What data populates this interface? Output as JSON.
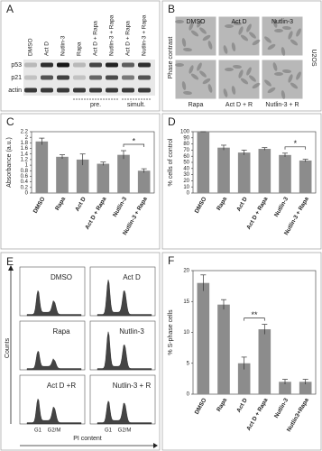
{
  "panel_a": {
    "panel": "A",
    "lanes": [
      "DMSO",
      "Act D",
      "Nutlin-3",
      "Rapa",
      "Act D + Rapa",
      "Nutlin-3 + Rapa",
      "Act D + Rapa",
      "Nutlin-3 + Rapa"
    ],
    "rows": [
      "p53",
      "p21",
      "actin"
    ],
    "groups": [
      "pre.",
      "simult."
    ]
  },
  "panel_b": {
    "panel": "B",
    "top": [
      "DMSO",
      "Act D",
      "Nutlin-3"
    ],
    "bottom": [
      "Rapa",
      "Act D + R",
      "Nutlin-3 + R"
    ],
    "side_label": "Phase contrast",
    "cell_line": "U2OS"
  },
  "panel_e": {
    "panel": "E",
    "plots": [
      "DMSO",
      "Act D",
      "Rapa",
      "Nutlin-3",
      "Act D +R",
      "Nutlin-3 + R"
    ],
    "y_label": "Counts",
    "x_label": "PI content",
    "g1": "G1",
    "g2m": "G2/M"
  },
  "chart_data": [
    {
      "type": "bar",
      "panel": "C",
      "ylabel": "Absorbance (a.u.)",
      "categories": [
        "DMSO",
        "Rapa",
        "Act D",
        "Act D + Rapa",
        "Nutlin-3",
        "Nutlin-3 + Rapa"
      ],
      "values": [
        1.85,
        1.3,
        1.2,
        1.05,
        1.37,
        0.8
      ],
      "errors": [
        0.12,
        0.07,
        0.2,
        0.06,
        0.15,
        0.07
      ],
      "color": "#8c8c8c",
      "ylim": [
        0,
        2.2
      ],
      "yticks": [
        0,
        0.2,
        0.4,
        0.6,
        0.8,
        1,
        1.2,
        1.4,
        1.6,
        1.8,
        2,
        2.2
      ],
      "significance": {
        "label": "*",
        "between": [
          "Nutlin-3",
          "Nutlin-3 + Rapa"
        ]
      }
    },
    {
      "type": "bar",
      "panel": "D",
      "ylabel": "% cells of control",
      "categories": [
        "DMSO",
        "Rapa",
        "Act D",
        "Act D + Rapa",
        "Nutlin-3",
        "Nutlin-3 + Rapa"
      ],
      "values": [
        100,
        74,
        66,
        72,
        62,
        53
      ],
      "errors": [
        0,
        4,
        4,
        2,
        3,
        2
      ],
      "color": "#8c8c8c",
      "ylim": [
        0,
        100
      ],
      "yticks": [
        0,
        10,
        20,
        30,
        40,
        50,
        60,
        70,
        80,
        90,
        100
      ],
      "significance": {
        "label": "*",
        "between": [
          "Nutlin-3",
          "Nutlin-3 + Rapa"
        ]
      }
    },
    {
      "type": "bar",
      "panel": "F",
      "ylabel": "% S-phase cells",
      "categories": [
        "DMSO",
        "Rapa",
        "Act D",
        "Act D + Rapa",
        "Nutlin-3",
        "Nutlin3+Rapa"
      ],
      "values": [
        18,
        14.5,
        5,
        10.5,
        2,
        2
      ],
      "errors": [
        1.3,
        0.8,
        1,
        0.8,
        0.4,
        0.4
      ],
      "color": "#8c8c8c",
      "ylim": [
        0,
        20
      ],
      "yticks": [
        0,
        5,
        10,
        15,
        20
      ],
      "significance": {
        "label": "**",
        "between": [
          "Act D",
          "Act D + Rapa"
        ]
      }
    }
  ]
}
